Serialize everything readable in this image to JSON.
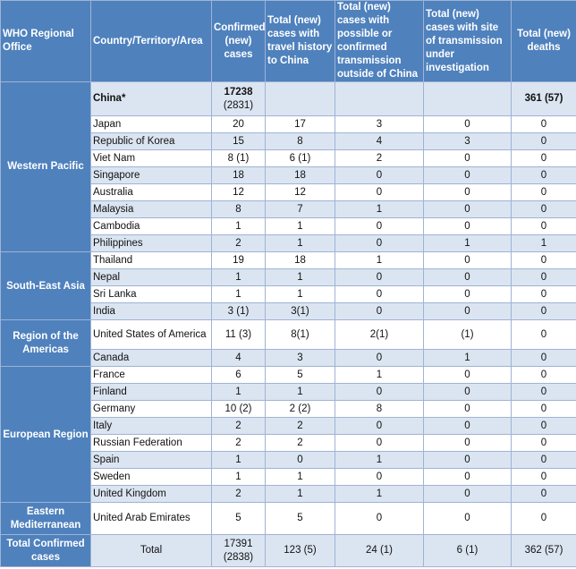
{
  "headers": {
    "office": "WHO Regional Office",
    "country": "Country/Territory/Area",
    "confirmed": "Confirmed (new) cases",
    "travel": "Total (new) cases with travel history to China",
    "outside": "Total (new) cases with possible or confirmed transmission outside of China",
    "investigation": "Total (new) cases with site of transmission under investigation",
    "deaths": "Total (new) deaths"
  },
  "regions": {
    "western_pacific": "Western Pacific",
    "south_east_asia": "South-East Asia",
    "americas": "Region of the Americas",
    "european": "European Region",
    "eastern_med": "Eastern Mediterranean"
  },
  "rows": [
    {
      "country": "China*",
      "confirmed": "17238",
      "confirmed2": "(2831)",
      "travel": "",
      "outside": "",
      "investigation": "",
      "deaths": "361 (57)"
    },
    {
      "country": "Japan",
      "confirmed": "20",
      "travel": "17",
      "outside": "3",
      "investigation": "0",
      "deaths": "0"
    },
    {
      "country": "Republic of Korea",
      "confirmed": "15",
      "travel": "8",
      "outside": "4",
      "investigation": "3",
      "deaths": "0"
    },
    {
      "country": "Viet Nam",
      "confirmed": "8 (1)",
      "travel": "6 (1)",
      "outside": "2",
      "investigation": "0",
      "deaths": "0"
    },
    {
      "country": "Singapore",
      "confirmed": "18",
      "travel": "18",
      "outside": "0",
      "investigation": "0",
      "deaths": "0"
    },
    {
      "country": "Australia",
      "confirmed": "12",
      "travel": "12",
      "outside": "0",
      "investigation": "0",
      "deaths": "0"
    },
    {
      "country": "Malaysia",
      "confirmed": "8",
      "travel": "7",
      "outside": "1",
      "investigation": "0",
      "deaths": "0"
    },
    {
      "country": "Cambodia",
      "confirmed": "1",
      "travel": "1",
      "outside": "0",
      "investigation": "0",
      "deaths": "0"
    },
    {
      "country": "Philippines",
      "confirmed": "2",
      "travel": "1",
      "outside": "0",
      "investigation": "1",
      "deaths": "1"
    },
    {
      "country": "Thailand",
      "confirmed": "19",
      "travel": "18",
      "outside": "1",
      "investigation": "0",
      "deaths": "0"
    },
    {
      "country": "Nepal",
      "confirmed": "1",
      "travel": "1",
      "outside": "0",
      "investigation": "0",
      "deaths": "0"
    },
    {
      "country": "Sri Lanka",
      "confirmed": "1",
      "travel": "1",
      "outside": "0",
      "investigation": "0",
      "deaths": "0"
    },
    {
      "country": "India",
      "confirmed": "3 (1)",
      "travel": "3(1)",
      "outside": "0",
      "investigation": "0",
      "deaths": "0"
    },
    {
      "country": "United States of America",
      "confirmed": "11 (3)",
      "travel": "8(1)",
      "outside": "2(1)",
      "investigation": "(1)",
      "deaths": "0"
    },
    {
      "country": "Canada",
      "confirmed": "4",
      "travel": "3",
      "outside": "0",
      "investigation": "1",
      "deaths": "0"
    },
    {
      "country": "France",
      "confirmed": "6",
      "travel": "5",
      "outside": "1",
      "investigation": "0",
      "deaths": "0"
    },
    {
      "country": "Finland",
      "confirmed": "1",
      "travel": "1",
      "outside": "0",
      "investigation": "0",
      "deaths": "0"
    },
    {
      "country": "Germany",
      "confirmed": "10 (2)",
      "travel": "2 (2)",
      "outside": "8",
      "investigation": "0",
      "deaths": "0"
    },
    {
      "country": "Italy",
      "confirmed": "2",
      "travel": "2",
      "outside": "0",
      "investigation": "0",
      "deaths": "0"
    },
    {
      "country": "Russian Federation",
      "confirmed": "2",
      "travel": "2",
      "outside": "0",
      "investigation": "0",
      "deaths": "0"
    },
    {
      "country": "Spain",
      "confirmed": "1",
      "travel": "0",
      "outside": "1",
      "investigation": "0",
      "deaths": "0"
    },
    {
      "country": "Sweden",
      "confirmed": "1",
      "travel": "1",
      "outside": "0",
      "investigation": "0",
      "deaths": "0"
    },
    {
      "country": "United Kingdom",
      "confirmed": "2",
      "travel": "1",
      "outside": "1",
      "investigation": "0",
      "deaths": "0"
    },
    {
      "country": "United Arab Emirates",
      "confirmed": "5",
      "travel": "5",
      "outside": "0",
      "investigation": "0",
      "deaths": "0"
    }
  ],
  "totals": {
    "label": "Total Confirmed cases",
    "country": "Total",
    "confirmed": "17391",
    "confirmed2": "(2838)",
    "travel": "123 (5)",
    "outside": "24 (1)",
    "investigation": "6 (1)",
    "deaths": "362 (57)"
  }
}
